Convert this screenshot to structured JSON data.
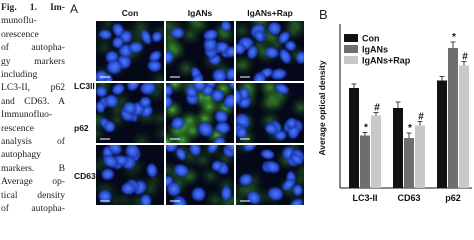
{
  "caption": {
    "lines": [
      "Fig. 1. Im-",
      "munoflu-",
      "orescence",
      "of autopha-",
      "gy markers",
      "including",
      "LC3-II, p62",
      "and CD63. A",
      "Immunofluo-",
      "rescence",
      "analysis of",
      "autophagy",
      "markers. B",
      "Average op-",
      "tical density",
      "of autopha-"
    ]
  },
  "panel_a": {
    "label": "A",
    "columns": [
      "Con",
      "IgANs",
      "IgANs+Rap"
    ],
    "rows": [
      "LC3II",
      "p62",
      "CD63"
    ]
  },
  "chart_data": {
    "type": "bar",
    "panel_label": "B",
    "y_label": "Average optical density",
    "categories": [
      "LC3-II",
      "CD63",
      "p62"
    ],
    "ylim": [
      0,
      32
    ],
    "series": [
      {
        "name": "Con",
        "color": "#111111",
        "values": [
          20,
          16,
          21.5
        ],
        "errors": [
          0.8,
          1.2,
          0.8
        ]
      },
      {
        "name": "IgANs",
        "color": "#6e6e6e",
        "values": [
          10.5,
          10,
          28
        ],
        "errors": [
          0.6,
          1.0,
          1.2
        ],
        "sig_labels": [
          "*",
          "*",
          "*"
        ]
      },
      {
        "name": "IgANs+Rap",
        "color": "#c8c8c8",
        "values": [
          14.5,
          12.5,
          24.5
        ],
        "errors": [
          0.6,
          0.8,
          0.8
        ],
        "sig_labels": [
          "#",
          "#",
          "#"
        ]
      }
    ]
  }
}
